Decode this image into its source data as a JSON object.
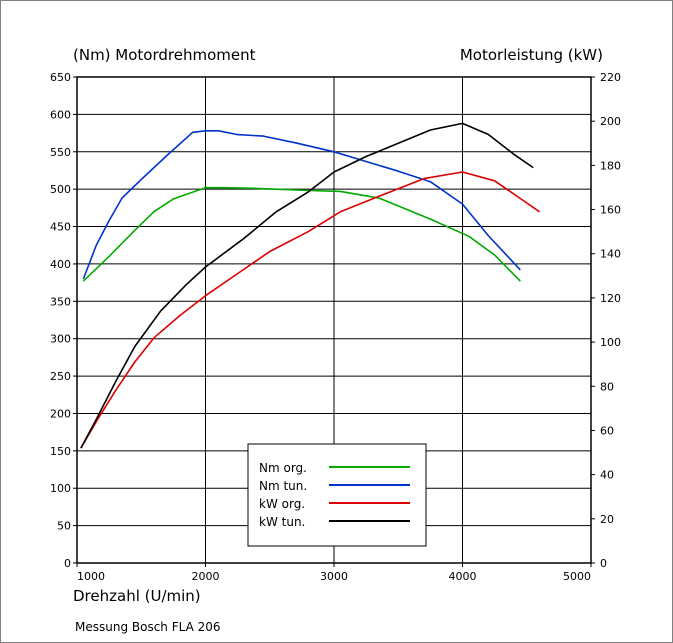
{
  "chart_data": {
    "type": "line",
    "left_axis_title": "(Nm)  Motordrehmoment",
    "right_axis_title": "Motorleistung  (kW)",
    "xlabel": "Drehzahl  (U/min)",
    "footer": "Messung Bosch FLA 206",
    "xlim": [
      1000,
      5000
    ],
    "x_ticks": [
      "1000",
      "2000",
      "3000",
      "4000",
      "5000"
    ],
    "x_tick_values": [
      1000,
      2000,
      3000,
      4000,
      5000
    ],
    "ylim_left": [
      0,
      650
    ],
    "y_left_ticks": [
      "0",
      "50",
      "100",
      "150",
      "200",
      "250",
      "300",
      "350",
      "400",
      "450",
      "500",
      "550",
      "600",
      "650"
    ],
    "y_left_tick_values": [
      0,
      50,
      100,
      150,
      200,
      250,
      300,
      350,
      400,
      450,
      500,
      550,
      600,
      650
    ],
    "ylim_right": [
      0,
      220
    ],
    "y_right_ticks": [
      "0",
      "20",
      "40",
      "60",
      "80",
      "100",
      "120",
      "140",
      "160",
      "180",
      "200",
      "220"
    ],
    "y_right_tick_values": [
      0,
      20,
      40,
      60,
      80,
      100,
      120,
      140,
      160,
      180,
      200,
      220
    ],
    "vertical_grid": [
      2000,
      3000,
      4000
    ],
    "horizontal_grid_left": [
      50,
      100,
      150,
      200,
      250,
      300,
      350,
      400,
      450,
      500,
      550,
      600
    ],
    "legend_position": "bottom-center",
    "series": [
      {
        "name": "Nm org.",
        "axis": "left",
        "color": "#00aa00",
        "points": [
          [
            1050,
            377
          ],
          [
            1250,
            410
          ],
          [
            1450,
            445
          ],
          [
            1600,
            470
          ],
          [
            1750,
            487
          ],
          [
            1900,
            496
          ],
          [
            2000,
            502
          ],
          [
            2150,
            502
          ],
          [
            2400,
            501
          ],
          [
            2700,
            499
          ],
          [
            3050,
            497
          ],
          [
            3350,
            488
          ],
          [
            3750,
            460
          ],
          [
            4050,
            437
          ],
          [
            4250,
            412
          ],
          [
            4450,
            377
          ]
        ]
      },
      {
        "name": "Nm tun.",
        "axis": "left",
        "color": "#0033cc",
        "points": [
          [
            1050,
            380
          ],
          [
            1150,
            425
          ],
          [
            1250,
            458
          ],
          [
            1350,
            488
          ],
          [
            1500,
            513
          ],
          [
            1700,
            545
          ],
          [
            1900,
            576
          ],
          [
            2000,
            578
          ],
          [
            2100,
            578
          ],
          [
            2250,
            573
          ],
          [
            2450,
            571
          ],
          [
            2700,
            562
          ],
          [
            3000,
            550
          ],
          [
            3250,
            537
          ],
          [
            3500,
            524
          ],
          [
            3750,
            510
          ],
          [
            4000,
            480
          ],
          [
            4200,
            438
          ],
          [
            4450,
            392
          ]
        ]
      },
      {
        "name": "kW org.",
        "axis": "right",
        "color": "#dd0000",
        "points": [
          [
            1030,
            52
          ],
          [
            1150,
            64
          ],
          [
            1300,
            78
          ],
          [
            1450,
            91
          ],
          [
            1600,
            102
          ],
          [
            1800,
            112
          ],
          [
            2000,
            121
          ],
          [
            2250,
            131
          ],
          [
            2500,
            141
          ],
          [
            2800,
            150
          ],
          [
            3050,
            159
          ],
          [
            3350,
            166
          ],
          [
            3700,
            174
          ],
          [
            4000,
            177
          ],
          [
            4250,
            173
          ],
          [
            4450,
            165
          ],
          [
            4600,
            159
          ]
        ]
      },
      {
        "name": "kW tun.",
        "axis": "right",
        "color": "#000000",
        "points": [
          [
            1030,
            52
          ],
          [
            1150,
            65
          ],
          [
            1300,
            82
          ],
          [
            1450,
            98
          ],
          [
            1650,
            114
          ],
          [
            1850,
            126
          ],
          [
            2000,
            134
          ],
          [
            2300,
            147
          ],
          [
            2550,
            159
          ],
          [
            2800,
            168
          ],
          [
            3000,
            177
          ],
          [
            3250,
            184
          ],
          [
            3500,
            190
          ],
          [
            3750,
            196
          ],
          [
            4000,
            199
          ],
          [
            4200,
            194
          ],
          [
            4400,
            185
          ],
          [
            4550,
            179
          ]
        ]
      }
    ]
  }
}
